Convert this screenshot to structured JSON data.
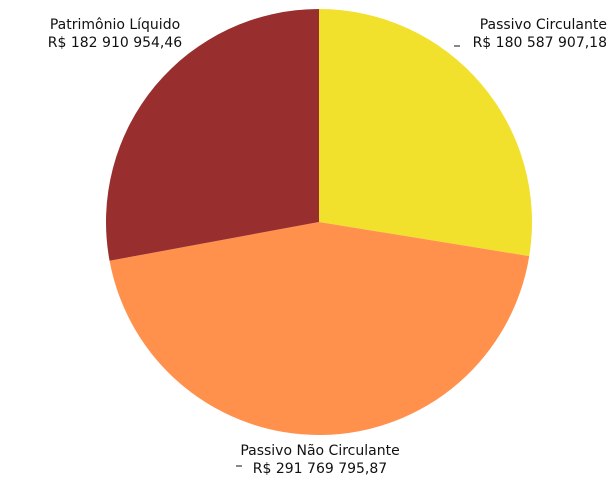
{
  "chart_data": {
    "type": "pie",
    "title": "",
    "slices": [
      {
        "label": "Passivo Circulante",
        "value_text": "R$ 180 587 907,18",
        "value": 180587907.18,
        "color": "#f2e12c"
      },
      {
        "label": "Passivo Não Circulante",
        "value_text": "R$ 291 769 795,87",
        "value": 291769795.87,
        "color": "#ff914d"
      },
      {
        "label": "Patrimônio Líquido",
        "value_text": "R$ 182 910 954,46",
        "value": 182910954.46,
        "color": "#992e2e"
      }
    ]
  }
}
